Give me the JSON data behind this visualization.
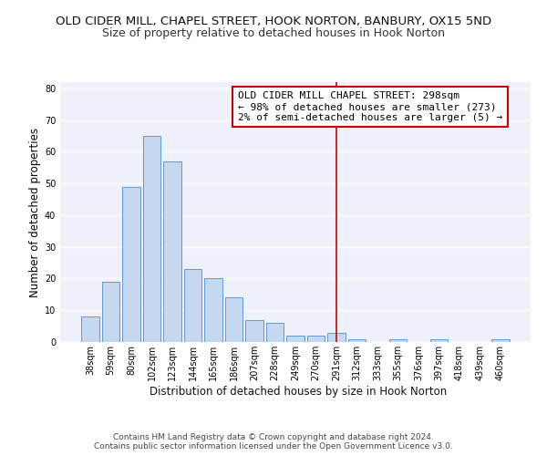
{
  "title1": "OLD CIDER MILL, CHAPEL STREET, HOOK NORTON, BANBURY, OX15 5ND",
  "title2": "Size of property relative to detached houses in Hook Norton",
  "xlabel": "Distribution of detached houses by size in Hook Norton",
  "ylabel": "Number of detached properties",
  "categories": [
    "38sqm",
    "59sqm",
    "80sqm",
    "102sqm",
    "123sqm",
    "144sqm",
    "165sqm",
    "186sqm",
    "207sqm",
    "228sqm",
    "249sqm",
    "270sqm",
    "291sqm",
    "312sqm",
    "333sqm",
    "355sqm",
    "376sqm",
    "397sqm",
    "418sqm",
    "439sqm",
    "460sqm"
  ],
  "values": [
    8,
    19,
    49,
    65,
    57,
    23,
    20,
    14,
    7,
    6,
    2,
    2,
    3,
    1,
    0,
    1,
    0,
    1,
    0,
    0,
    1
  ],
  "bar_color": "#c5d8f0",
  "bar_edge_color": "#5b9bd5",
  "vline_x_index": 12,
  "vline_color": "#cc0000",
  "annotation_text": "OLD CIDER MILL CHAPEL STREET: 298sqm\n← 98% of detached houses are smaller (273)\n2% of semi-detached houses are larger (5) →",
  "annotation_box_color": "#ffffff",
  "annotation_box_edge_color": "#cc0000",
  "ylim": [
    0,
    82
  ],
  "yticks": [
    0,
    10,
    20,
    30,
    40,
    50,
    60,
    70,
    80
  ],
  "background_color": "#eef1fa",
  "grid_color": "#ffffff",
  "footer_text": "Contains HM Land Registry data © Crown copyright and database right 2024.\nContains public sector information licensed under the Open Government Licence v3.0.",
  "title1_fontsize": 9.5,
  "title2_fontsize": 9,
  "xlabel_fontsize": 8.5,
  "ylabel_fontsize": 8.5,
  "tick_fontsize": 7,
  "annotation_fontsize": 8,
  "footer_fontsize": 6.5
}
